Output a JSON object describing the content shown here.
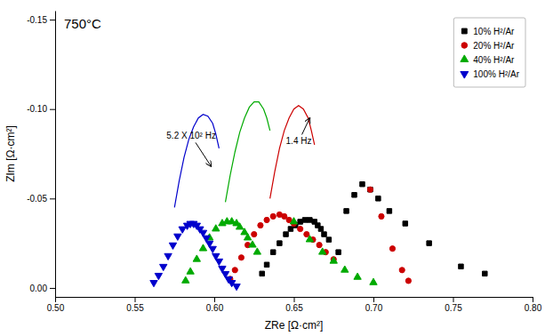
{
  "chart_data": {
    "type": "scatter",
    "title": "750°C",
    "xlabel": "ZRe [Ω·cm²]",
    "ylabel": "ZIm [Ω·cm²]",
    "xlim": [
      0.5,
      0.8
    ],
    "ylim": [
      0.005,
      -0.155
    ],
    "xticks": [
      {
        "value": 0.5,
        "label": "0.50"
      },
      0.55,
      {
        "value": 0.6,
        "label": "0.60"
      },
      0.65,
      {
        "value": 0.7,
        "label": "0.70"
      },
      0.75,
      {
        "value": 0.8,
        "label": "0.80"
      }
    ],
    "yticks": [
      {
        "value": 0,
        "label": "0.00"
      },
      -0.05,
      {
        "value": -0.1,
        "label": "-0.10"
      },
      -0.15
    ],
    "grid": false,
    "legend": "upper right",
    "annotations": [
      {
        "text": "5.2 X 10² Hz",
        "x": 0.598,
        "y": -0.068,
        "text_x": 0.57,
        "text_y": -0.085
      },
      {
        "text": "1.4 Hz",
        "x": 0.66,
        "y": -0.095,
        "text_x": 0.645,
        "text_y": -0.082
      }
    ],
    "series": [
      {
        "name": "10% H²/Ar",
        "type": "scatter",
        "color": "#000000",
        "marker": "square",
        "x": [
          0.63,
          0.633,
          0.637,
          0.641,
          0.645,
          0.648,
          0.651,
          0.654,
          0.657,
          0.66,
          0.663,
          0.665,
          0.667,
          0.669,
          0.672,
          0.678,
          0.683,
          0.688,
          0.693,
          0.698,
          0.703,
          0.71,
          0.72,
          0.735,
          0.755,
          0.77
        ],
        "values": [
          -0.008,
          -0.013,
          -0.02,
          -0.025,
          -0.03,
          -0.033,
          -0.035,
          -0.037,
          -0.038,
          -0.038,
          -0.037,
          -0.035,
          -0.033,
          -0.03,
          -0.027,
          -0.02,
          -0.043,
          -0.052,
          -0.058,
          -0.055,
          -0.05,
          -0.043,
          -0.036,
          -0.025,
          -0.012,
          -0.008
        ]
      },
      {
        "name": "20% H²/Ar",
        "type": "scatter",
        "color": "#cc0000",
        "marker": "circle",
        "x": [
          0.61,
          0.613,
          0.617,
          0.621,
          0.625,
          0.629,
          0.633,
          0.637,
          0.641,
          0.644,
          0.647,
          0.65,
          0.654,
          0.658,
          0.662,
          0.666,
          0.67,
          0.675,
          0.698,
          0.705,
          0.712,
          0.718,
          0.722
        ],
        "values": [
          -0.005,
          -0.01,
          -0.017,
          -0.024,
          -0.03,
          -0.035,
          -0.038,
          -0.04,
          -0.041,
          -0.04,
          -0.038,
          -0.036,
          -0.033,
          -0.03,
          -0.027,
          -0.024,
          -0.02,
          -0.016,
          -0.055,
          -0.04,
          -0.022,
          -0.01,
          -0.004
        ]
      },
      {
        "type": "line",
        "color": "#cc0000",
        "x": [
          0.635,
          0.638,
          0.641,
          0.644,
          0.647,
          0.65,
          0.653,
          0.656,
          0.659,
          0.661,
          0.663
        ],
        "values": [
          -0.05,
          -0.065,
          -0.078,
          -0.088,
          -0.095,
          -0.1,
          -0.102,
          -0.1,
          -0.095,
          -0.088,
          -0.08
        ]
      },
      {
        "name": "40% H²/Ar",
        "type": "scatter",
        "color": "#00aa00",
        "marker": "triangle-up",
        "x": [
          0.582,
          0.585,
          0.589,
          0.593,
          0.597,
          0.601,
          0.605,
          0.608,
          0.611,
          0.614,
          0.616,
          0.619,
          0.621,
          0.624,
          0.627,
          0.65,
          0.66,
          0.668,
          0.675,
          0.682,
          0.69,
          0.7
        ],
        "values": [
          -0.004,
          -0.009,
          -0.016,
          -0.022,
          -0.028,
          -0.033,
          -0.036,
          -0.037,
          -0.037,
          -0.036,
          -0.034,
          -0.031,
          -0.028,
          -0.024,
          -0.02,
          -0.037,
          -0.027,
          -0.02,
          -0.015,
          -0.01,
          -0.006,
          -0.003
        ]
      },
      {
        "type": "line",
        "color": "#00aa00",
        "x": [
          0.607,
          0.61,
          0.613,
          0.616,
          0.619,
          0.622,
          0.625,
          0.628,
          0.631,
          0.633,
          0.635
        ],
        "values": [
          -0.048,
          -0.063,
          -0.076,
          -0.087,
          -0.095,
          -0.101,
          -0.104,
          -0.104,
          -0.1,
          -0.095,
          -0.088
        ]
      },
      {
        "name": "100% H²/Ar",
        "type": "scatter",
        "color": "#0000cc",
        "marker": "triangle-down",
        "x": [
          0.562,
          0.565,
          0.568,
          0.571,
          0.574,
          0.577,
          0.58,
          0.583,
          0.585,
          0.587,
          0.589,
          0.591,
          0.593,
          0.595,
          0.597,
          0.599,
          0.601,
          0.603,
          0.605,
          0.607,
          0.609,
          0.611,
          0.614
        ],
        "values": [
          -0.003,
          -0.007,
          -0.012,
          -0.018,
          -0.024,
          -0.029,
          -0.033,
          -0.035,
          -0.036,
          -0.036,
          -0.035,
          -0.033,
          -0.031,
          -0.028,
          -0.025,
          -0.022,
          -0.018,
          -0.015,
          -0.011,
          -0.008,
          -0.005,
          -0.003,
          -0.001
        ]
      },
      {
        "type": "line",
        "color": "#0000cc",
        "x": [
          0.575,
          0.578,
          0.581,
          0.584,
          0.587,
          0.59,
          0.593,
          0.596,
          0.599,
          0.601,
          0.603
        ],
        "values": [
          -0.045,
          -0.06,
          -0.073,
          -0.083,
          -0.09,
          -0.095,
          -0.097,
          -0.096,
          -0.092,
          -0.086,
          -0.078
        ]
      }
    ]
  }
}
